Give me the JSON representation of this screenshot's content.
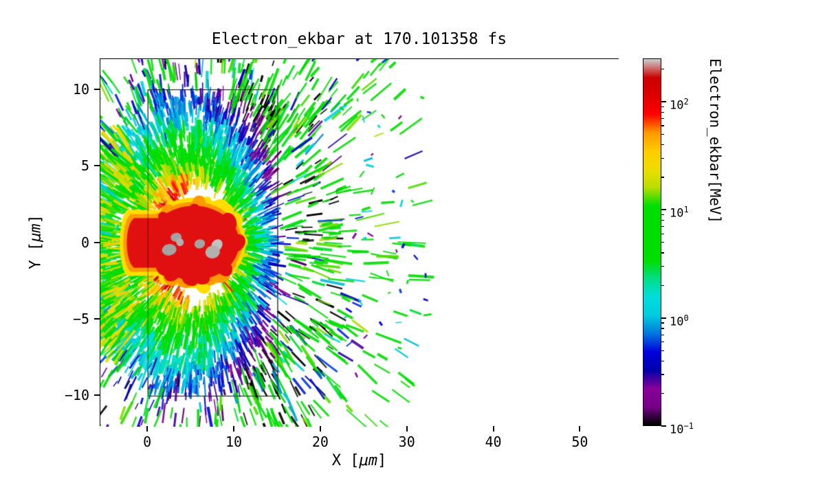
{
  "chart_data": {
    "type": "heatmap",
    "title": "Electron_ekbar at 170.101358 fs",
    "quantity": "Electron_ekbar",
    "time_fs": 170.101358,
    "xlabel": {
      "text": "X [μm]",
      "pre": "X [",
      "unit": "μm",
      "post": "]"
    },
    "ylabel": {
      "text": "Y [μm]",
      "pre": "Y [",
      "unit": "μm",
      "post": "]"
    },
    "xlim": [
      -5.5,
      54.5
    ],
    "ylim": [
      -12,
      12
    ],
    "xticks": [
      0,
      10,
      20,
      30,
      40,
      50
    ],
    "yticks": [
      -10,
      -5,
      0,
      5,
      10
    ],
    "grid": false,
    "legend": null,
    "colorbar": {
      "label": "Electron_ekbar[MeV]",
      "scale": "log",
      "units": "MeV",
      "tick_exponents": [
        2,
        1,
        0,
        -1
      ],
      "range_exponents": [
        -1,
        2.4
      ],
      "minor_ticks": true
    },
    "colormap": {
      "name": "nipy_spectral",
      "stops": [
        [
          0.0,
          "#000000"
        ],
        [
          0.05,
          "#770088"
        ],
        [
          0.1,
          "#880099"
        ],
        [
          0.15,
          "#0000aa"
        ],
        [
          0.2,
          "#0000dd"
        ],
        [
          0.25,
          "#0077dd"
        ],
        [
          0.3,
          "#00ccdd"
        ],
        [
          0.35,
          "#00dddd"
        ],
        [
          0.4,
          "#00dd88"
        ],
        [
          0.45,
          "#00dd00"
        ],
        [
          0.6,
          "#00dd00"
        ],
        [
          0.65,
          "#bbdd00"
        ],
        [
          0.7,
          "#eedd00"
        ],
        [
          0.75,
          "#ffcc00"
        ],
        [
          0.8,
          "#ff9900"
        ],
        [
          0.85,
          "#ff0000"
        ],
        [
          0.9,
          "#dd0000"
        ],
        [
          0.95,
          "#cc0000"
        ],
        [
          1.0,
          "#cccccc"
        ]
      ]
    },
    "target_box": {
      "x0": 0,
      "x1": 15,
      "y0": -10,
      "y1": 10
    },
    "burst_center": {
      "x": 6,
      "y": 0
    },
    "energy_profile": {
      "r_log10MeV": [
        [
          4,
          1.9
        ],
        [
          5,
          1.5
        ],
        [
          6,
          1.05
        ],
        [
          7,
          0.85
        ],
        [
          8,
          0.55
        ],
        [
          9,
          0.2
        ],
        [
          10,
          0.0
        ],
        [
          11,
          -0.2
        ],
        [
          12.5,
          -0.55
        ],
        [
          14,
          -0.8
        ],
        [
          18,
          -1.0
        ]
      ],
      "angular": {
        "base": 0.25,
        "cos_coeff": -0.5,
        "abs_sin_coeff": -0.7,
        "right_extra": -0.3,
        "right_extra_min_r": 6.5
      },
      "noise_log10": 0.6
    },
    "core": {
      "center": {
        "x": 5.3,
        "y": 0
      },
      "layers": [
        {
          "color": "#ffdd00",
          "rx": 6.0,
          "ry": 2.95,
          "stem_left": -2.45,
          "stem_half_h": 2.15
        },
        {
          "color": "#ff9900",
          "rx": 5.6,
          "ry": 2.68,
          "stem_left": -2.05,
          "stem_half_h": 1.88
        },
        {
          "color": "#e11010",
          "rx": 5.25,
          "ry": 2.42,
          "stem_left": -1.65,
          "stem_half_h": 1.62
        }
      ],
      "gray_specks": {
        "count": 7,
        "colors": [
          "#b3b0b0",
          "#a5a2a2",
          "#c6c3c3"
        ]
      }
    },
    "render": {
      "seed": 7,
      "halo_count": 6800,
      "left_count": 500,
      "corona_count": 780,
      "far_speck_count": 38
    }
  }
}
